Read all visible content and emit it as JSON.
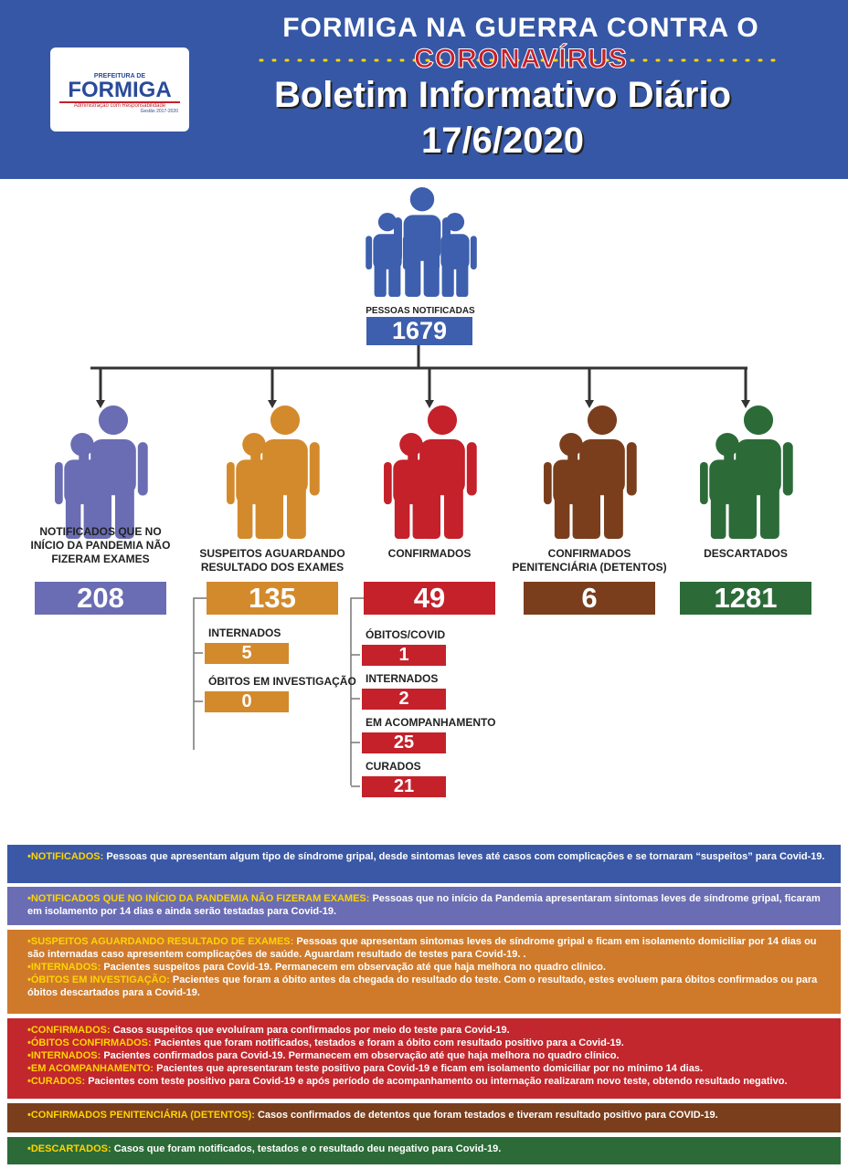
{
  "header": {
    "title_prefix": "FORMIGA NA GUERRA CONTRA O",
    "title_highlight": "CORONAVÍRUS",
    "subtitle": "Boletim Informativo Diário",
    "date": "17/6/2020",
    "logo": {
      "top": "PREFEITURA DE",
      "name": "FORMIGA",
      "motto": "Administração com Responsabilidade",
      "term": "Gestão 2017-2020"
    }
  },
  "total": {
    "label": "PESSOAS NOTIFICADAS",
    "value": "1679",
    "color": "#3d5fae"
  },
  "groups": [
    {
      "label": "NOTIFICADOS QUE NO INÍCIO DA PANDEMIA NÃO FIZERAM EXAMES",
      "value": "208",
      "color": "#6a6db3",
      "items": []
    },
    {
      "label": "SUSPEITOS AGUARDANDO RESULTADO DOS EXAMES",
      "value": "135",
      "color": "#d38a2c",
      "items": [
        {
          "label": "INTERNADOS",
          "value": "5"
        },
        {
          "label": "ÓBITOS EM INVESTIGAÇÃO",
          "value": "0"
        }
      ]
    },
    {
      "label": "CONFIRMADOS",
      "value": "49",
      "color": "#c4212b",
      "items": [
        {
          "label": "ÓBITOS/COVID",
          "value": "1"
        },
        {
          "label": "INTERNADOS",
          "value": "2"
        },
        {
          "label": "EM ACOMPANHAMENTO",
          "value": "25"
        },
        {
          "label": "CURADOS",
          "value": "21"
        }
      ]
    },
    {
      "label": "CONFIRMADOS PENITENCIÁRIA (DETENTOS)",
      "value": "6",
      "color": "#7a3e1d",
      "items": []
    },
    {
      "label": "DESCARTADOS",
      "value": "1281",
      "color": "#2c6b38",
      "items": []
    }
  ],
  "legend": [
    {
      "color": "#3a58a5",
      "items": [
        {
          "term": "NOTIFICADOS:",
          "text": "Pessoas que apresentam algum tipo de síndrome gripal, desde sintomas leves até casos com complicações e se tornaram “suspeitos” para Covid-19."
        }
      ]
    },
    {
      "color": "#6a6db3",
      "items": [
        {
          "term": "NOTIFICADOS QUE NO INÍCIO DA PANDEMIA NÃO FIZERAM EXAMES:",
          "text": "Pessoas que no início da Pandemia apresentaram sintomas leves de síndrome gripal, ficaram em isolamento por 14 dias e ainda serão testadas para Covid-19."
        }
      ]
    },
    {
      "color": "#cf7a2b",
      "items": [
        {
          "term": "SUSPEITOS AGUARDANDO RESULTADO DE EXAMES:",
          "text": "Pessoas que apresentam sintomas leves de síndrome gripal e ficam em isolamento domiciliar por 14 dias ou são internadas caso apresentem complicações de saúde. Aguardam resultado de testes para Covid-19. ."
        },
        {
          "term": "INTERNADOS:",
          "text": "Pacientes suspeitos para Covid-19. Permanecem em observação até que haja melhora no quadro clínico."
        },
        {
          "term": "ÓBITOS EM INVESTIGAÇÃO:",
          "text": "Pacientes que foram a óbito antes da chegada do resultado do teste. Com o resultado, estes evoluem para óbitos confirmados ou para óbitos descartados para a Covid-19."
        }
      ]
    },
    {
      "color": "#c1272d",
      "items": [
        {
          "term": "CONFIRMADOS:",
          "text": "Casos suspeitos que evoluíram para confirmados por meio do teste para Covid-19."
        },
        {
          "term": "ÓBITOS CONFIRMADOS:",
          "text": "Pacientes que foram notificados, testados e foram a óbito com resultado positivo para a Covid-19."
        },
        {
          "term": "INTERNADOS:",
          "text": "Pacientes confirmados para Covid-19. Permanecem em observação até que haja melhora no quadro clínico."
        },
        {
          "term": "EM ACOMPANHAMENTO:",
          "text": "Pacientes que apresentaram teste positivo para Covid-19 e ficam em isolamento domiciliar por no mínimo 14 dias."
        },
        {
          "term": "CURADOS:",
          "text": "Pacientes com teste positivo para Covid-19 e após período de acompanhamento ou internação realizaram novo teste, obtendo resultado negativo."
        }
      ]
    },
    {
      "color": "#7a3e1d",
      "items": [
        {
          "term": "CONFIRMADOS PENITENCIÁRIA (DETENTOS):",
          "text": "Casos confirmados de detentos que foram testados e tiveram resultado positivo para COVID-19."
        }
      ]
    },
    {
      "color": "#2c6b38",
      "items": [
        {
          "term": "DESCARTADOS:",
          "text": "Casos que foram notificados, testados e o resultado deu negativo para Covid-19."
        }
      ]
    }
  ]
}
